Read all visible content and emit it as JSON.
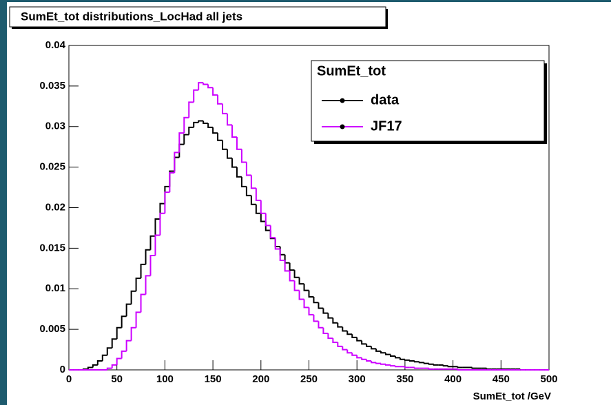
{
  "chart_data": {
    "type": "histogram",
    "title": "SumEt_tot distributions_LocHad all jets",
    "x_label": "SumEt_tot /GeV",
    "legend_title": "SumEt_tot",
    "legend": "top-right",
    "bins": [
      0,
      5,
      10,
      15,
      20,
      25,
      30,
      35,
      40,
      45,
      50,
      55,
      60,
      65,
      70,
      75,
      80,
      85,
      90,
      95,
      100,
      105,
      110,
      115,
      120,
      125,
      130,
      135,
      140,
      145,
      150,
      155,
      160,
      165,
      170,
      175,
      180,
      185,
      190,
      195,
      200,
      205,
      210,
      215,
      220,
      225,
      230,
      235,
      240,
      245,
      250,
      255,
      260,
      265,
      270,
      275,
      280,
      285,
      290,
      295,
      300,
      305,
      310,
      315,
      320,
      325,
      330,
      335,
      340,
      345,
      350,
      355,
      360,
      365,
      370,
      375,
      380,
      385,
      390,
      395,
      400,
      405,
      410,
      415,
      420,
      425,
      430,
      435,
      440,
      445,
      450,
      455,
      460,
      465,
      470,
      475,
      480,
      485,
      490,
      495,
      500
    ],
    "series": [
      {
        "name": "data",
        "color": "#000000",
        "values": [
          0,
          0,
          0,
          0.0001,
          0.0003,
          0.0006,
          0.0011,
          0.0018,
          0.0027,
          0.0038,
          0.0052,
          0.0066,
          0.0081,
          0.0097,
          0.0113,
          0.013,
          0.0148,
          0.0165,
          0.0186,
          0.0205,
          0.0226,
          0.0245,
          0.0262,
          0.0278,
          0.029,
          0.0299,
          0.0305,
          0.0307,
          0.0304,
          0.0299,
          0.0292,
          0.0283,
          0.0272,
          0.0261,
          0.025,
          0.0238,
          0.0226,
          0.0215,
          0.0204,
          0.0193,
          0.0183,
          0.0172,
          0.0162,
          0.0152,
          0.0142,
          0.0132,
          0.0123,
          0.0114,
          0.0106,
          0.0098,
          0.009,
          0.0083,
          0.0076,
          0.007,
          0.0064,
          0.0058,
          0.0053,
          0.0048,
          0.0044,
          0.004,
          0.0036,
          0.0032,
          0.0029,
          0.0026,
          0.0023,
          0.0021,
          0.0019,
          0.0017,
          0.0015,
          0.0013,
          0.0012,
          0.0011,
          0.001,
          0.0009,
          0.0008,
          0.0007,
          0.0006,
          0.0006,
          0.0005,
          0.0004,
          0.0004,
          0.0003,
          0.0003,
          0.0003,
          0.0002,
          0.0002,
          0.0002,
          0.0001,
          0.0001,
          0.0001,
          0.0001,
          0.0001,
          0.0001,
          0.0001,
          0,
          0,
          0,
          0,
          0,
          0
        ]
      },
      {
        "name": "JF17",
        "color": "#cc00ff",
        "values": [
          0,
          0,
          0,
          0,
          0,
          0,
          0,
          0,
          0.0002,
          0.0006,
          0.0014,
          0.0023,
          0.0036,
          0.0052,
          0.0071,
          0.0093,
          0.0116,
          0.0141,
          0.0166,
          0.0193,
          0.0219,
          0.0243,
          0.0268,
          0.0292,
          0.0311,
          0.033,
          0.0345,
          0.0354,
          0.0352,
          0.0348,
          0.0339,
          0.0328,
          0.0316,
          0.0302,
          0.0287,
          0.0272,
          0.0256,
          0.024,
          0.0224,
          0.0209,
          0.0193,
          0.0178,
          0.0163,
          0.0149,
          0.0135,
          0.0122,
          0.011,
          0.0098,
          0.0087,
          0.0077,
          0.0068,
          0.006,
          0.0052,
          0.0045,
          0.0039,
          0.0034,
          0.0029,
          0.0025,
          0.0021,
          0.0018,
          0.0015,
          0.0013,
          0.0011,
          0.0009,
          0.0008,
          0.0007,
          0.0006,
          0.0005,
          0.0004,
          0.0004,
          0.0003,
          0.0003,
          0.0002,
          0.0002,
          0.0002,
          0.0001,
          0.0001,
          0.0001,
          0.0001,
          0.0001,
          0.0001,
          0,
          0,
          0,
          0,
          0,
          0,
          0,
          0,
          0,
          0,
          0,
          0,
          0,
          0,
          0,
          0,
          0,
          0,
          0
        ]
      }
    ],
    "xlim": [
      0,
      500
    ],
    "xticks": [
      0,
      50,
      100,
      150,
      200,
      250,
      300,
      350,
      400,
      450,
      500
    ],
    "ylim": [
      0,
      0.04
    ],
    "yticks": [
      0,
      0.005,
      0.01,
      0.015,
      0.02,
      0.025,
      0.03,
      0.035,
      0.04
    ]
  }
}
